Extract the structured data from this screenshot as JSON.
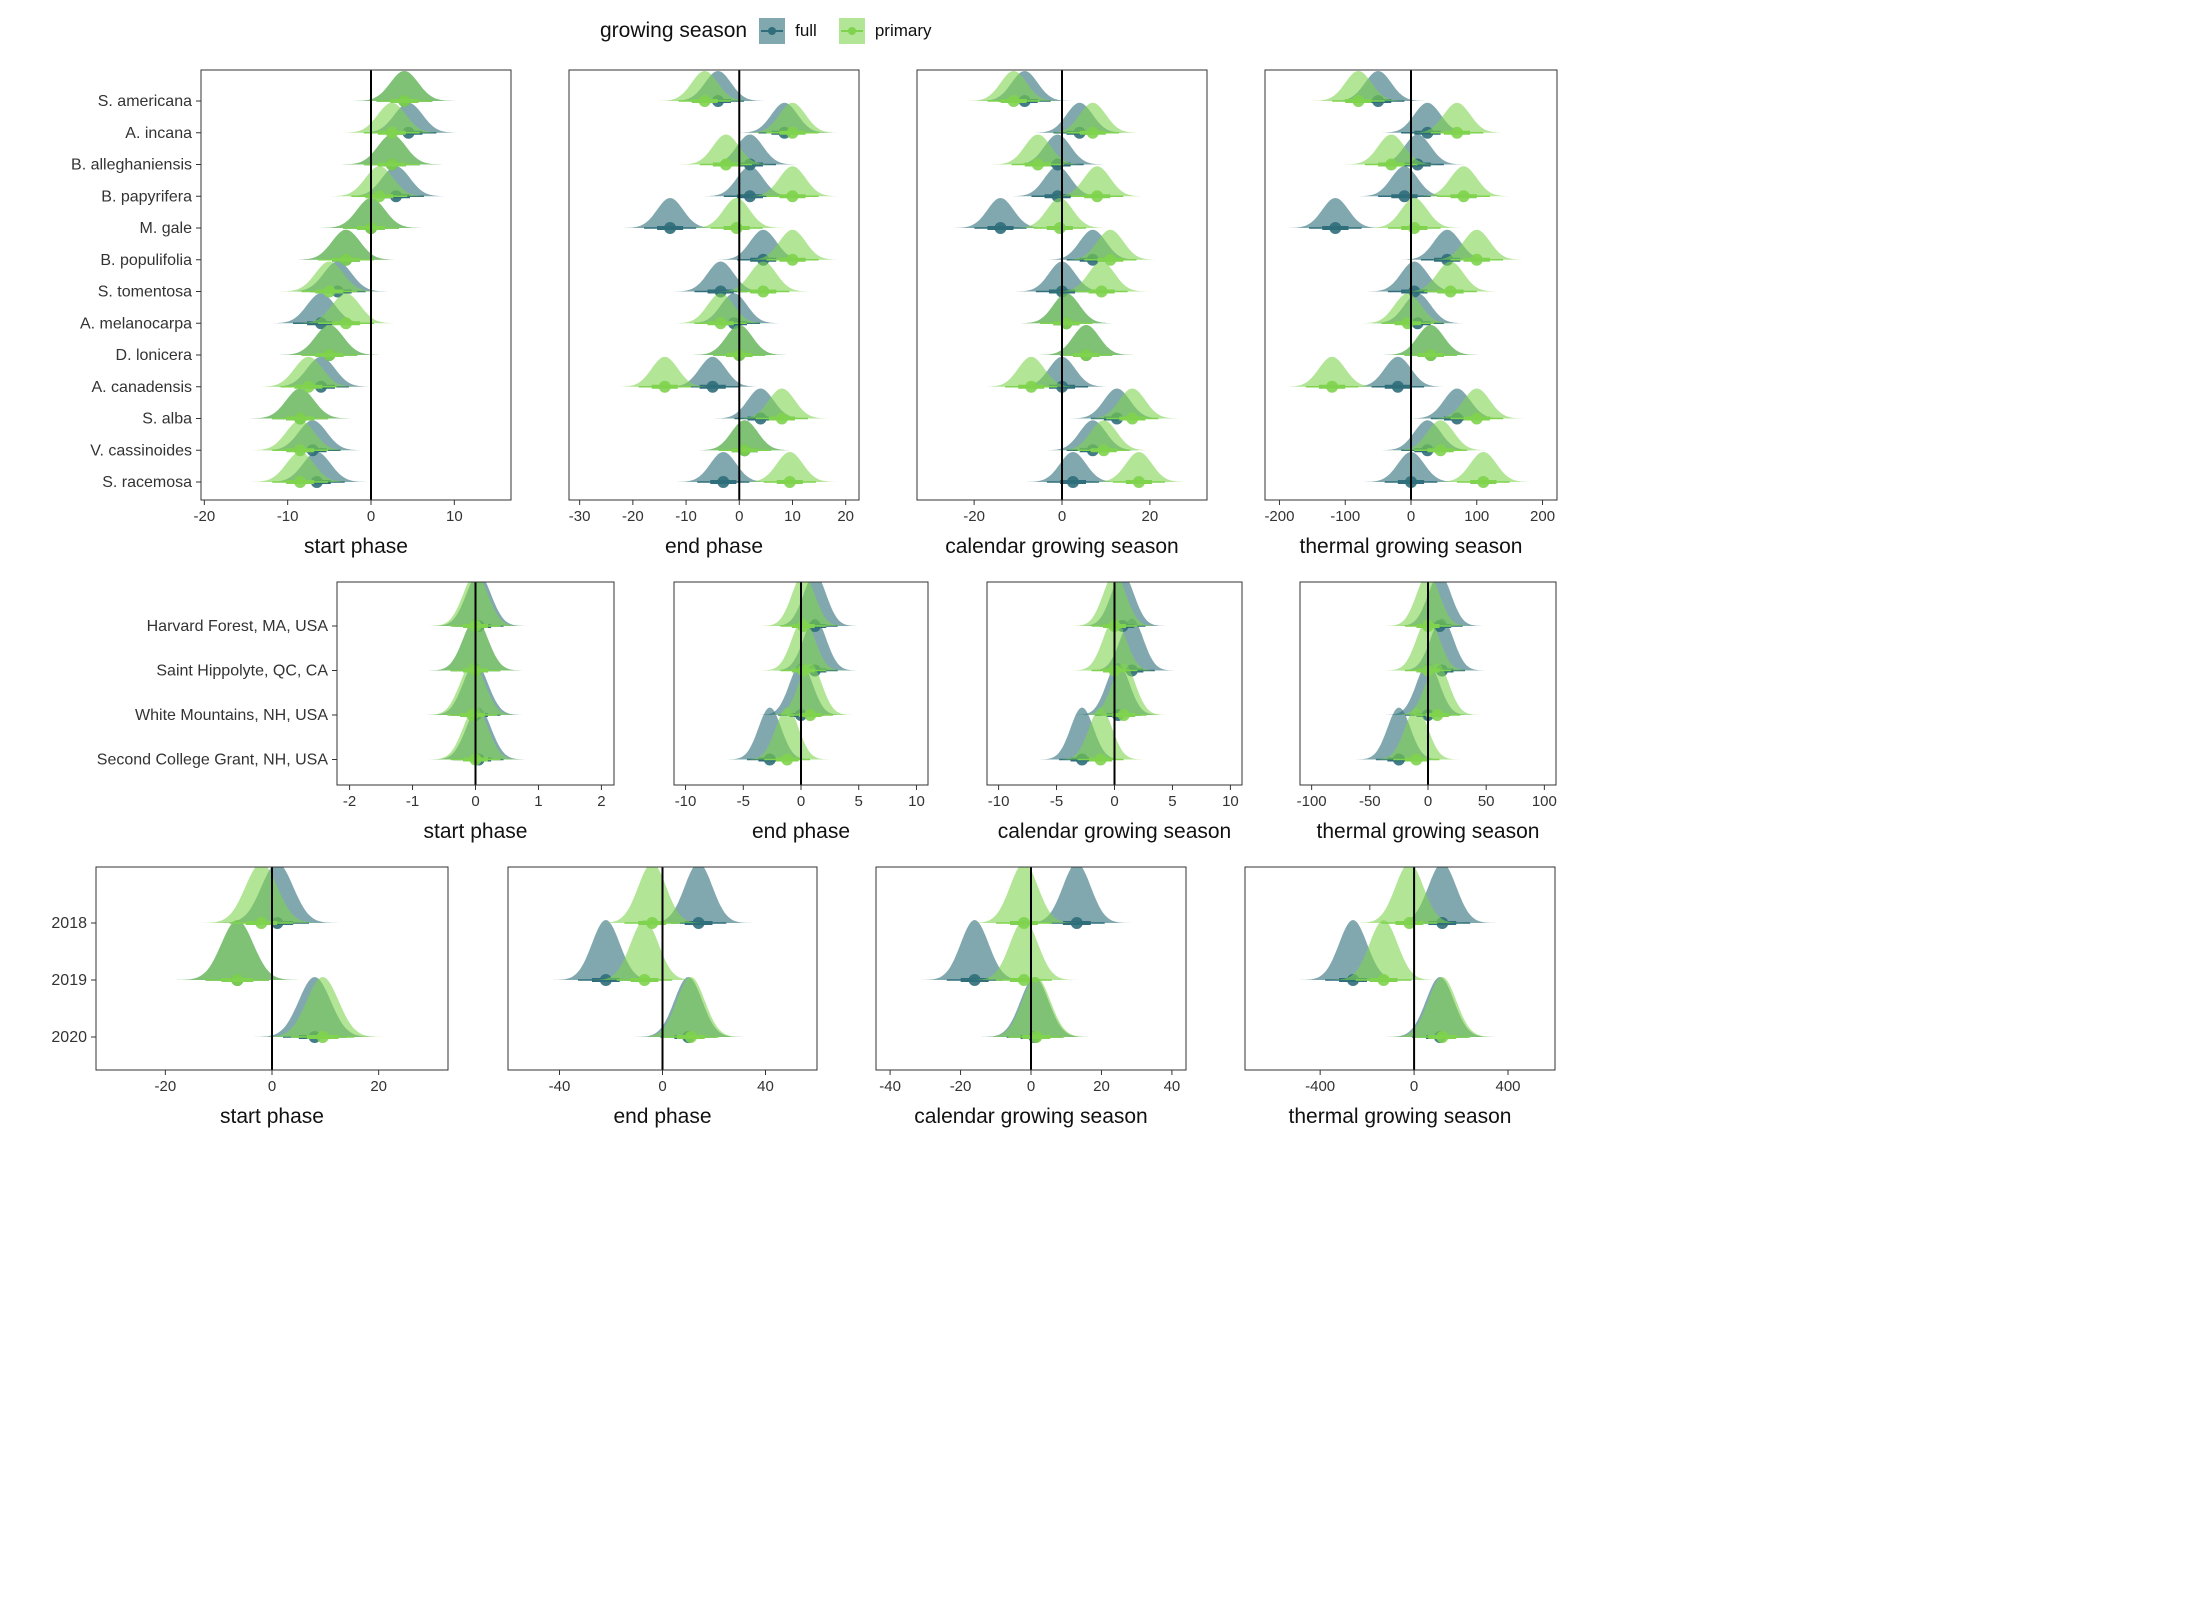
{
  "legend": {
    "title": "growing season",
    "items": [
      {
        "label": "full",
        "color": "#2f6e7a"
      },
      {
        "label": "primary",
        "color": "#7fd34e"
      }
    ]
  },
  "colors": {
    "full": "#2f6e7a",
    "primary": "#7fd34e"
  },
  "chart_data": [
    {
      "type": "density",
      "row": "species",
      "title": "",
      "xlabel": "start phase",
      "xlim": [
        -20.4,
        16.8
      ],
      "ticks": [
        -20,
        -10,
        0,
        10
      ],
      "categories": [
        "S. americana",
        "A. incana",
        "B. alleghaniensis",
        "B. papyrifera",
        "M. gale",
        "B. populifolia",
        "S. tomentosa",
        "A. melanocarpa",
        "D. lonicera",
        "A. canadensis",
        "S. alba",
        "V. cassinoides",
        "S. racemosa"
      ],
      "series": [
        {
          "name": "full",
          "means": [
            4,
            4.5,
            2.5,
            3,
            0,
            -3,
            -4,
            -6,
            -5,
            -6,
            -8.5,
            -7,
            -6.5
          ]
        },
        {
          "name": "primary",
          "means": [
            4,
            2.5,
            2.5,
            1,
            0,
            -3,
            -5,
            -3,
            -5,
            -7.5,
            -8.5,
            -8.5,
            -8.5
          ]
        }
      ]
    },
    {
      "type": "density",
      "row": "species",
      "title": "",
      "xlabel": "end phase",
      "xlim": [
        -32,
        22.5
      ],
      "ticks": [
        -30,
        -20,
        -10,
        0,
        10,
        20
      ],
      "categories": [
        "S. americana",
        "A. incana",
        "B. alleghaniensis",
        "B. papyrifera",
        "M. gale",
        "B. populifolia",
        "S. tomentosa",
        "A. melanocarpa",
        "D. lonicera",
        "A. canadensis",
        "S. alba",
        "V. cassinoides",
        "S. racemosa"
      ],
      "series": [
        {
          "name": "full",
          "means": [
            -4,
            8.5,
            2,
            2,
            -13,
            4.5,
            -3.5,
            -1,
            0,
            -5,
            4,
            1,
            -3
          ]
        },
        {
          "name": "primary",
          "means": [
            -6.5,
            10,
            -2.5,
            10,
            -0.5,
            10,
            4.5,
            -3.5,
            0,
            -14,
            8,
            1,
            9.5
          ]
        }
      ]
    },
    {
      "type": "density",
      "row": "species",
      "title": "",
      "xlabel": "calendar growing season",
      "xlim": [
        -33,
        33
      ],
      "ticks": [
        -20,
        0,
        20
      ],
      "categories": [
        "S. americana",
        "A. incana",
        "B. alleghaniensis",
        "B. papyrifera",
        "M. gale",
        "B. populifolia",
        "S. tomentosa",
        "A. melanocarpa",
        "D. lonicera",
        "A. canadensis",
        "S. alba",
        "V. cassinoides",
        "S. racemosa"
      ],
      "series": [
        {
          "name": "full",
          "means": [
            -8.5,
            4,
            -1,
            -1,
            -14,
            7,
            0,
            1,
            5.5,
            0,
            12.5,
            7,
            2.5
          ]
        },
        {
          "name": "primary",
          "means": [
            -11,
            7,
            -5.5,
            8,
            -0.5,
            11,
            9,
            1,
            5.5,
            -7,
            16,
            9.5,
            17.5
          ]
        }
      ]
    },
    {
      "type": "density",
      "row": "species",
      "title": "",
      "xlabel": "thermal growing season",
      "xlim": [
        -222,
        222
      ],
      "ticks": [
        -200,
        -100,
        0,
        100,
        200
      ],
      "categories": [
        "S. americana",
        "A. incana",
        "B. alleghaniensis",
        "B. papyrifera",
        "M. gale",
        "B. populifolia",
        "S. tomentosa",
        "A. melanocarpa",
        "D. lonicera",
        "A. canadensis",
        "S. alba",
        "V. cassinoides",
        "S. racemosa"
      ],
      "series": [
        {
          "name": "full",
          "means": [
            -50,
            25,
            10,
            -10,
            -115,
            55,
            5,
            10,
            30,
            -20,
            70,
            25,
            0
          ]
        },
        {
          "name": "primary",
          "means": [
            -80,
            70,
            -30,
            80,
            5,
            100,
            60,
            -5,
            30,
            -120,
            100,
            45,
            110
          ]
        }
      ]
    },
    {
      "type": "density",
      "row": "site",
      "title": "",
      "xlabel": "start phase",
      "xlim": [
        -2.2,
        2.2
      ],
      "ticks": [
        -2,
        -1,
        0,
        1,
        2
      ],
      "categories": [
        "Harvard Forest, MA, USA",
        "Saint Hippolyte, QC, CA",
        "White Mountains, NH, USA",
        "Second College Grant, NH, USA"
      ],
      "series": [
        {
          "name": "full",
          "means": [
            0.05,
            0,
            0,
            0.05
          ]
        },
        {
          "name": "primary",
          "means": [
            0,
            0,
            -0.05,
            0
          ]
        }
      ]
    },
    {
      "type": "density",
      "row": "site",
      "title": "",
      "xlabel": "end phase",
      "xlim": [
        -11,
        11
      ],
      "ticks": [
        -10,
        -5,
        0,
        5,
        10
      ],
      "categories": [
        "Harvard Forest, MA, USA",
        "Saint Hippolyte, QC, CA",
        "White Mountains, NH, USA",
        "Second College Grant, NH, USA"
      ],
      "series": [
        {
          "name": "full",
          "means": [
            1.2,
            1.2,
            0,
            -2.7
          ]
        },
        {
          "name": "primary",
          "means": [
            0.2,
            0.2,
            0.8,
            -1.2
          ]
        }
      ]
    },
    {
      "type": "density",
      "row": "site",
      "title": "",
      "xlabel": "calendar growing season",
      "xlim": [
        -11,
        11
      ],
      "ticks": [
        -10,
        -5,
        0,
        5,
        10
      ],
      "categories": [
        "Harvard Forest, MA, USA",
        "Saint Hippolyte, QC, CA",
        "White Mountains, NH, USA",
        "Second College Grant, NH, USA"
      ],
      "series": [
        {
          "name": "full",
          "means": [
            0.7,
            1.5,
            0.3,
            -2.8
          ]
        },
        {
          "name": "primary",
          "means": [
            0,
            0,
            0.8,
            -1.2
          ]
        }
      ]
    },
    {
      "type": "density",
      "row": "site",
      "title": "",
      "xlabel": "thermal growing season",
      "xlim": [
        -110,
        110
      ],
      "ticks": [
        -100,
        -50,
        0,
        50,
        100
      ],
      "categories": [
        "Harvard Forest, MA, USA",
        "Saint Hippolyte, QC, CA",
        "White Mountains, NH, USA",
        "Second College Grant, NH, USA"
      ],
      "series": [
        {
          "name": "full",
          "means": [
            10,
            12,
            0,
            -25
          ]
        },
        {
          "name": "primary",
          "means": [
            0,
            0,
            8,
            -10
          ]
        }
      ]
    },
    {
      "type": "density",
      "row": "year",
      "title": "",
      "xlabel": "start phase",
      "xlim": [
        -33,
        33
      ],
      "ticks": [
        -20,
        0,
        20
      ],
      "categories": [
        "2018",
        "2019",
        "2020"
      ],
      "series": [
        {
          "name": "full",
          "means": [
            1,
            -6.5,
            8
          ]
        },
        {
          "name": "primary",
          "means": [
            -2,
            -6.5,
            9.5
          ]
        }
      ]
    },
    {
      "type": "density",
      "row": "year",
      "title": "",
      "xlabel": "end phase",
      "xlim": [
        -60,
        60
      ],
      "ticks": [
        -40,
        0,
        40
      ],
      "categories": [
        "2018",
        "2019",
        "2020"
      ],
      "series": [
        {
          "name": "full",
          "means": [
            14,
            -22,
            10
          ]
        },
        {
          "name": "primary",
          "means": [
            -4,
            -7,
            11
          ]
        }
      ]
    },
    {
      "type": "density",
      "row": "year",
      "title": "",
      "xlabel": "calendar growing season",
      "xlim": [
        -44,
        44
      ],
      "ticks": [
        -40,
        -20,
        0,
        20,
        40
      ],
      "categories": [
        "2018",
        "2019",
        "2020"
      ],
      "series": [
        {
          "name": "full",
          "means": [
            13,
            -16,
            1
          ]
        },
        {
          "name": "primary",
          "means": [
            -2,
            -2,
            1.5
          ]
        }
      ]
    },
    {
      "type": "density",
      "row": "year",
      "title": "",
      "xlabel": "thermal growing season",
      "xlim": [
        -720,
        600
      ],
      "ticks": [
        -400,
        0,
        400
      ],
      "categories": [
        "2018",
        "2019",
        "2020"
      ],
      "series": [
        {
          "name": "full",
          "means": [
            120,
            -260,
            110
          ]
        },
        {
          "name": "primary",
          "means": [
            -20,
            -130,
            120
          ]
        }
      ]
    }
  ]
}
